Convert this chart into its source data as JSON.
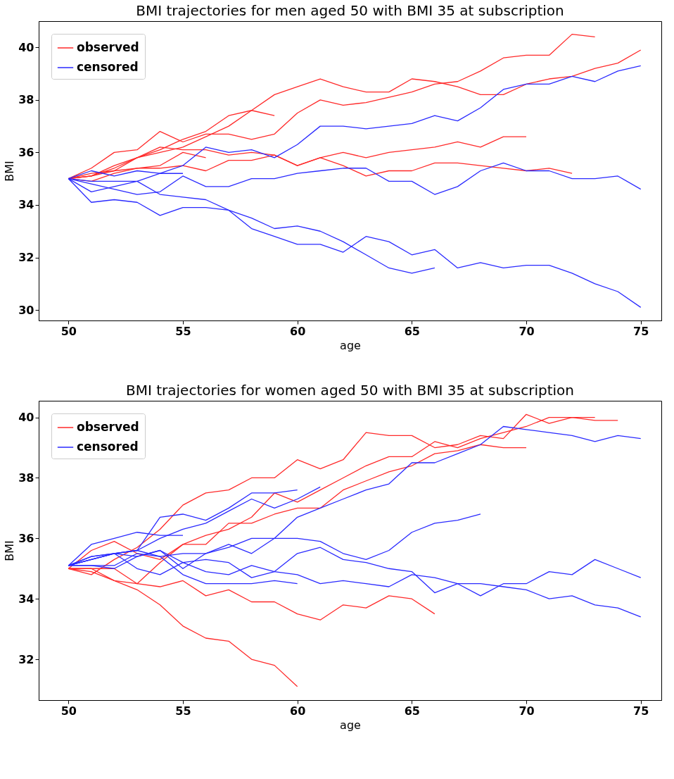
{
  "chart_data": [
    {
      "type": "line",
      "title": "BMI trajectories for men aged 50 with BMI 35 at subscription",
      "xlabel": "age",
      "ylabel": "BMI",
      "x": [
        50,
        51,
        52,
        53,
        54,
        55,
        56,
        57,
        58,
        59,
        60,
        61,
        62,
        63,
        64,
        65,
        66,
        67,
        68,
        69,
        70,
        71,
        72,
        73,
        74,
        75
      ],
      "xlim": [
        48.7,
        75.9
      ],
      "ylim": [
        29.6,
        41.0
      ],
      "xticks": [
        50,
        55,
        60,
        65,
        70,
        75
      ],
      "yticks": [
        30,
        32,
        34,
        36,
        38,
        40
      ],
      "grid": false,
      "legend": "top left",
      "line_style": "solid",
      "marker": "none",
      "series": [
        {
          "name": "observed",
          "color": "#ff2a2a",
          "values": [
            35.0,
            35.4,
            36.0,
            36.1,
            36.8,
            36.4,
            36.7,
            36.7,
            36.5,
            36.7,
            37.5,
            38.0,
            37.8,
            37.9,
            38.1,
            38.3,
            38.6,
            38.7,
            39.1,
            39.6,
            39.7,
            39.7,
            40.5,
            40.4,
            null,
            null
          ]
        },
        {
          "color": "#ff2a2a",
          "values": [
            35.0,
            35.1,
            35.4,
            35.8,
            36.1,
            36.5,
            36.8,
            37.4,
            37.6,
            38.2,
            38.5,
            38.8,
            38.5,
            38.3,
            38.3,
            38.8,
            38.7,
            38.5,
            38.2,
            38.2,
            38.6,
            38.8,
            38.9,
            39.2,
            39.4,
            39.9
          ]
        },
        {
          "color": "#ff2a2a",
          "values": [
            35.0,
            35.1,
            35.5,
            35.8,
            36.0,
            36.2,
            36.6,
            37.0,
            37.6,
            37.4,
            null,
            null,
            null,
            null,
            null,
            null,
            null,
            null,
            null,
            null,
            null,
            null,
            null,
            null,
            null,
            null
          ]
        },
        {
          "color": "#ff2a2a",
          "values": [
            35.0,
            35.1,
            35.3,
            35.8,
            36.2,
            36.1,
            36.1,
            35.9,
            36.0,
            35.9,
            35.5,
            35.8,
            36.0,
            35.8,
            36.0,
            36.1,
            36.2,
            36.4,
            36.2,
            36.6,
            36.6,
            null,
            null,
            null,
            null,
            null
          ]
        },
        {
          "color": "#ff2a2a",
          "values": [
            35.0,
            35.2,
            35.3,
            35.4,
            35.5,
            36.0,
            35.8,
            null,
            null,
            null,
            null,
            null,
            null,
            null,
            null,
            null,
            null,
            null,
            null,
            null,
            null,
            null,
            null,
            null,
            null,
            null
          ]
        },
        {
          "color": "#ff2a2a",
          "values": [
            35.0,
            34.9,
            35.2,
            35.4,
            35.4,
            35.5,
            35.3,
            35.7,
            35.7,
            35.9,
            35.5,
            35.8,
            35.5,
            35.1,
            35.3,
            35.3,
            35.6,
            35.6,
            35.5,
            35.4,
            35.3,
            35.4,
            35.2,
            null,
            null,
            null
          ]
        },
        {
          "name": "censored",
          "color": "#2a2aff",
          "values": [
            35.0,
            35.3,
            35.1,
            35.3,
            35.2,
            35.2,
            null,
            null,
            null,
            null,
            null,
            null,
            null,
            null,
            null,
            null,
            null,
            null,
            null,
            null,
            null,
            null,
            null,
            null,
            null,
            null
          ]
        },
        {
          "color": "#2a2aff",
          "values": [
            35.0,
            34.5,
            34.7,
            34.9,
            35.2,
            35.5,
            36.2,
            36.0,
            36.1,
            35.8,
            36.3,
            37.0,
            37.0,
            36.9,
            37.0,
            37.1,
            37.4,
            37.2,
            37.7,
            38.4,
            38.6,
            38.6,
            38.9,
            38.7,
            39.1,
            39.3
          ]
        },
        {
          "color": "#2a2aff",
          "values": [
            35.0,
            34.8,
            34.6,
            34.4,
            34.5,
            35.1,
            34.7,
            34.7,
            35.0,
            35.0,
            35.2,
            35.3,
            35.4,
            35.4,
            34.9,
            34.9,
            34.4,
            34.7,
            35.3,
            35.6,
            35.3,
            35.3,
            35.0,
            35.0,
            35.1,
            34.6
          ]
        },
        {
          "color": "#2a2aff",
          "values": [
            35.0,
            34.9,
            34.9,
            34.9,
            34.4,
            34.3,
            34.2,
            33.8,
            33.5,
            33.1,
            33.2,
            33.0,
            32.6,
            32.1,
            31.6,
            31.4,
            31.6,
            null,
            null,
            null,
            null,
            null,
            null,
            null,
            null,
            null
          ]
        },
        {
          "color": "#2a2aff",
          "values": [
            35.0,
            34.1,
            34.2,
            34.1,
            33.6,
            33.9,
            33.9,
            33.8,
            33.1,
            32.8,
            32.5,
            32.5,
            32.2,
            32.8,
            32.6,
            32.1,
            32.3,
            31.6,
            31.8,
            31.6,
            31.7,
            31.7,
            31.4,
            31.0,
            30.7,
            30.1
          ]
        }
      ]
    },
    {
      "type": "line",
      "title": "BMI trajectories for women aged 50 with BMI 35 at subscription",
      "xlabel": "age",
      "ylabel": "BMI",
      "x": [
        50,
        51,
        52,
        53,
        54,
        55,
        56,
        57,
        58,
        59,
        60,
        61,
        62,
        63,
        64,
        65,
        66,
        67,
        68,
        69,
        70,
        71,
        72,
        73,
        74,
        75
      ],
      "xlim": [
        48.7,
        75.9
      ],
      "ylim": [
        30.65,
        40.55
      ],
      "xticks": [
        50,
        55,
        60,
        65,
        70,
        75
      ],
      "yticks": [
        32,
        34,
        36,
        38,
        40
      ],
      "grid": false,
      "legend": "top left",
      "line_style": "solid",
      "marker": "none",
      "series": [
        {
          "name": "observed",
          "color": "#ff2a2a",
          "values": [
            35.0,
            34.8,
            35.3,
            35.7,
            36.3,
            37.1,
            37.5,
            37.6,
            38.0,
            38.0,
            38.6,
            38.3,
            38.6,
            39.5,
            39.4,
            39.4,
            39.0,
            39.1,
            39.4,
            39.3,
            40.1,
            39.8,
            40.0,
            39.9,
            39.9,
            null
          ]
        },
        {
          "color": "#ff2a2a",
          "values": [
            35.0,
            35.6,
            35.9,
            35.5,
            35.3,
            35.8,
            36.1,
            36.3,
            36.7,
            37.5,
            37.2,
            37.6,
            38.0,
            38.4,
            38.7,
            38.7,
            39.2,
            39.0,
            39.3,
            39.5,
            39.7,
            40.0,
            40.0,
            40.0,
            null,
            null
          ]
        },
        {
          "color": "#ff2a2a",
          "values": [
            35.0,
            35.0,
            35.0,
            34.5,
            35.2,
            35.8,
            35.8,
            36.5,
            36.5,
            36.8,
            37.0,
            37.0,
            37.6,
            37.9,
            38.2,
            38.4,
            38.8,
            38.9,
            39.1,
            39.0,
            39.0,
            null,
            null,
            null,
            null,
            null
          ]
        },
        {
          "color": "#ff2a2a",
          "values": [
            35.0,
            34.9,
            34.6,
            34.5,
            34.4,
            34.6,
            34.1,
            34.3,
            33.9,
            33.9,
            33.5,
            33.3,
            33.8,
            33.7,
            34.1,
            34.0,
            33.5,
            null,
            null,
            null,
            null,
            null,
            null,
            null,
            null,
            null
          ]
        },
        {
          "color": "#ff2a2a",
          "values": [
            35.0,
            35.0,
            34.6,
            34.3,
            33.8,
            33.1,
            32.7,
            32.6,
            32.0,
            31.8,
            31.1,
            null,
            null,
            null,
            null,
            null,
            null,
            null,
            null,
            null,
            null,
            null,
            null,
            null,
            null,
            null
          ]
        },
        {
          "name": "censored",
          "color": "#2a2aff",
          "values": [
            35.1,
            35.3,
            35.5,
            35.6,
            35.4,
            35.5,
            35.5,
            35.8,
            35.5,
            36.0,
            36.7,
            37.0,
            37.3,
            37.6,
            37.8,
            38.5,
            38.5,
            38.8,
            39.1,
            39.7,
            39.6,
            39.5,
            39.4,
            39.2,
            39.4,
            39.3
          ]
        },
        {
          "color": "#2a2aff",
          "values": [
            35.1,
            35.4,
            35.5,
            35.6,
            36.7,
            36.8,
            36.6,
            37.0,
            37.5,
            37.5,
            37.6,
            null,
            null,
            null,
            null,
            null,
            null,
            null,
            null,
            null,
            null,
            null,
            null,
            null,
            null,
            null
          ]
        },
        {
          "color": "#2a2aff",
          "values": [
            35.1,
            35.3,
            35.5,
            35.6,
            36.0,
            36.3,
            36.5,
            36.9,
            37.3,
            37.0,
            37.3,
            37.7,
            null,
            null,
            null,
            null,
            null,
            null,
            null,
            null,
            null,
            null,
            null,
            null,
            null,
            null
          ]
        },
        {
          "color": "#2a2aff",
          "values": [
            35.1,
            35.8,
            36.0,
            36.2,
            36.1,
            36.1,
            null,
            null,
            null,
            null,
            null,
            null,
            null,
            null,
            null,
            null,
            null,
            null,
            null,
            null,
            null,
            null,
            null,
            null,
            null,
            null
          ]
        },
        {
          "color": "#2a2aff",
          "values": [
            35.1,
            35.4,
            35.5,
            35.4,
            35.6,
            35.0,
            35.5,
            35.7,
            36.0,
            36.0,
            36.0,
            35.9,
            35.5,
            35.3,
            35.6,
            36.2,
            36.5,
            36.6,
            36.8,
            null,
            null,
            null,
            null,
            null,
            null,
            null
          ]
        },
        {
          "color": "#2a2aff",
          "values": [
            35.1,
            35.3,
            35.5,
            35.0,
            34.8,
            35.2,
            35.3,
            35.2,
            34.7,
            34.9,
            35.5,
            35.7,
            35.3,
            35.2,
            35.0,
            34.9,
            34.2,
            34.5,
            34.1,
            34.5,
            34.5,
            34.9,
            34.8,
            35.3,
            35.0,
            34.7
          ]
        },
        {
          "color": "#2a2aff",
          "values": [
            35.1,
            35.1,
            35.1,
            35.5,
            35.4,
            34.8,
            34.5,
            34.5,
            34.5,
            34.6,
            34.5,
            null,
            null,
            null,
            null,
            null,
            null,
            null,
            null,
            null,
            null,
            null,
            null,
            null,
            null,
            null
          ]
        },
        {
          "color": "#2a2aff",
          "values": [
            35.1,
            35.1,
            35.0,
            35.4,
            35.6,
            35.2,
            34.9,
            34.8,
            35.1,
            34.9,
            34.8,
            34.5,
            34.6,
            34.5,
            34.4,
            34.8,
            34.7,
            34.5,
            34.5,
            34.4,
            34.3,
            34.0,
            34.1,
            33.8,
            33.7,
            33.4
          ]
        }
      ]
    }
  ]
}
